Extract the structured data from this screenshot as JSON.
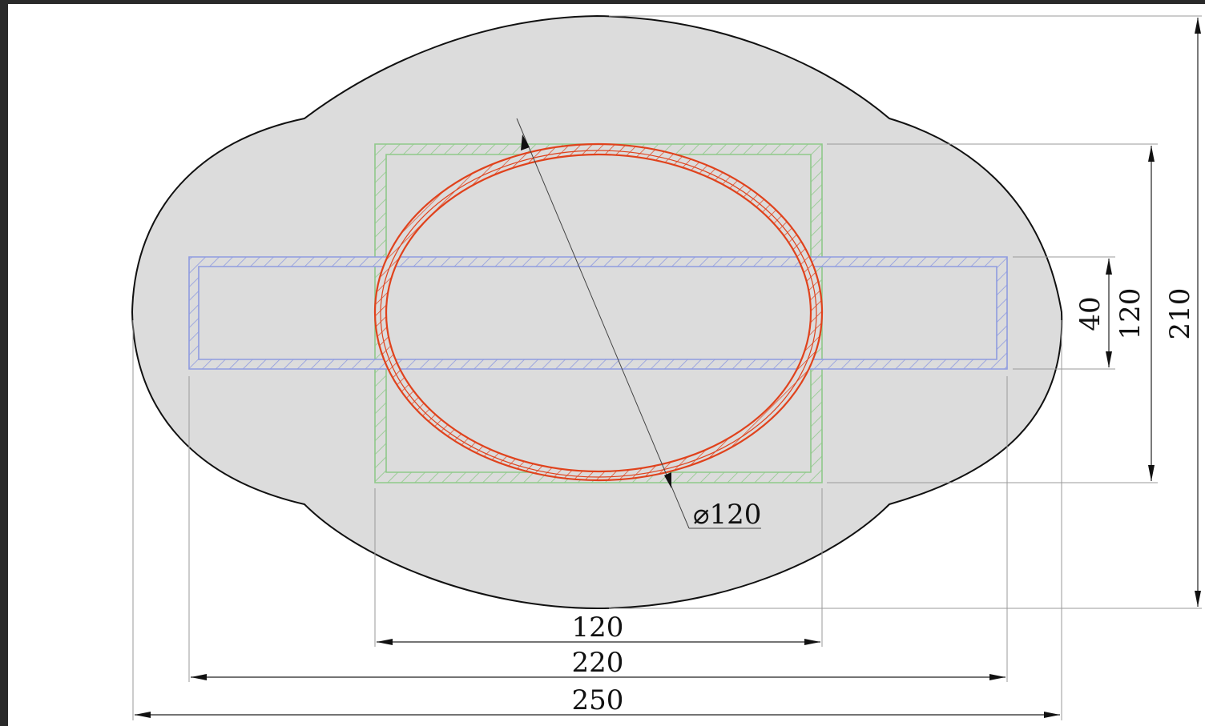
{
  "drawing": {
    "dimensions": {
      "width_120": "120",
      "width_220": "220",
      "width_250": "250",
      "height_40": "40",
      "height_120": "120",
      "height_210": "210",
      "diameter": "⌀120"
    },
    "colors": {
      "background_frame": "#2a2a2a",
      "paper": "#ffffff",
      "body_fill": "#dcdcdc",
      "body_outline": "#111111",
      "square_duct": "#8fc98a",
      "rect_duct": "#8f9be0",
      "round_duct": "#e0421c",
      "dim_line": "#222222",
      "ext_line": "#9a9a9a"
    }
  }
}
